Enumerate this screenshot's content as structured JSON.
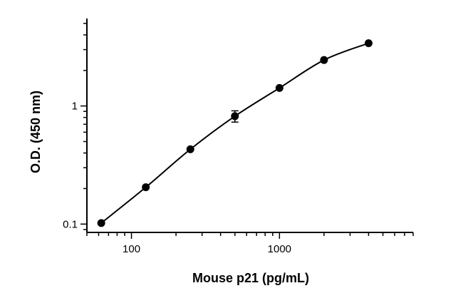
{
  "chart_data": {
    "type": "scatter",
    "title": "",
    "xlabel": "Mouse p21 (pg/mL)",
    "ylabel": "O.D. (450 nm)",
    "x_scale": "log",
    "y_scale": "log",
    "xlim": [
      50,
      8000
    ],
    "ylim": [
      0.085,
      5.5
    ],
    "x_ticks": [
      {
        "value": 100,
        "label": "100"
      },
      {
        "value": 1000,
        "label": "1000"
      }
    ],
    "y_ticks": [
      {
        "value": 0.1,
        "label": "0.1"
      },
      {
        "value": 1,
        "label": "1"
      }
    ],
    "grid": false,
    "legend": "none",
    "series": [
      {
        "x": [
          62.5,
          125,
          250,
          500,
          1000,
          2000,
          4000
        ],
        "y": [
          0.102,
          0.205,
          0.43,
          0.82,
          1.42,
          2.45,
          3.4
        ],
        "y_err": [
          0.003,
          0.006,
          0.012,
          0.09,
          0.04,
          0.06,
          0.08
        ],
        "fit": "smooth-curve",
        "color": "#000000"
      }
    ]
  }
}
